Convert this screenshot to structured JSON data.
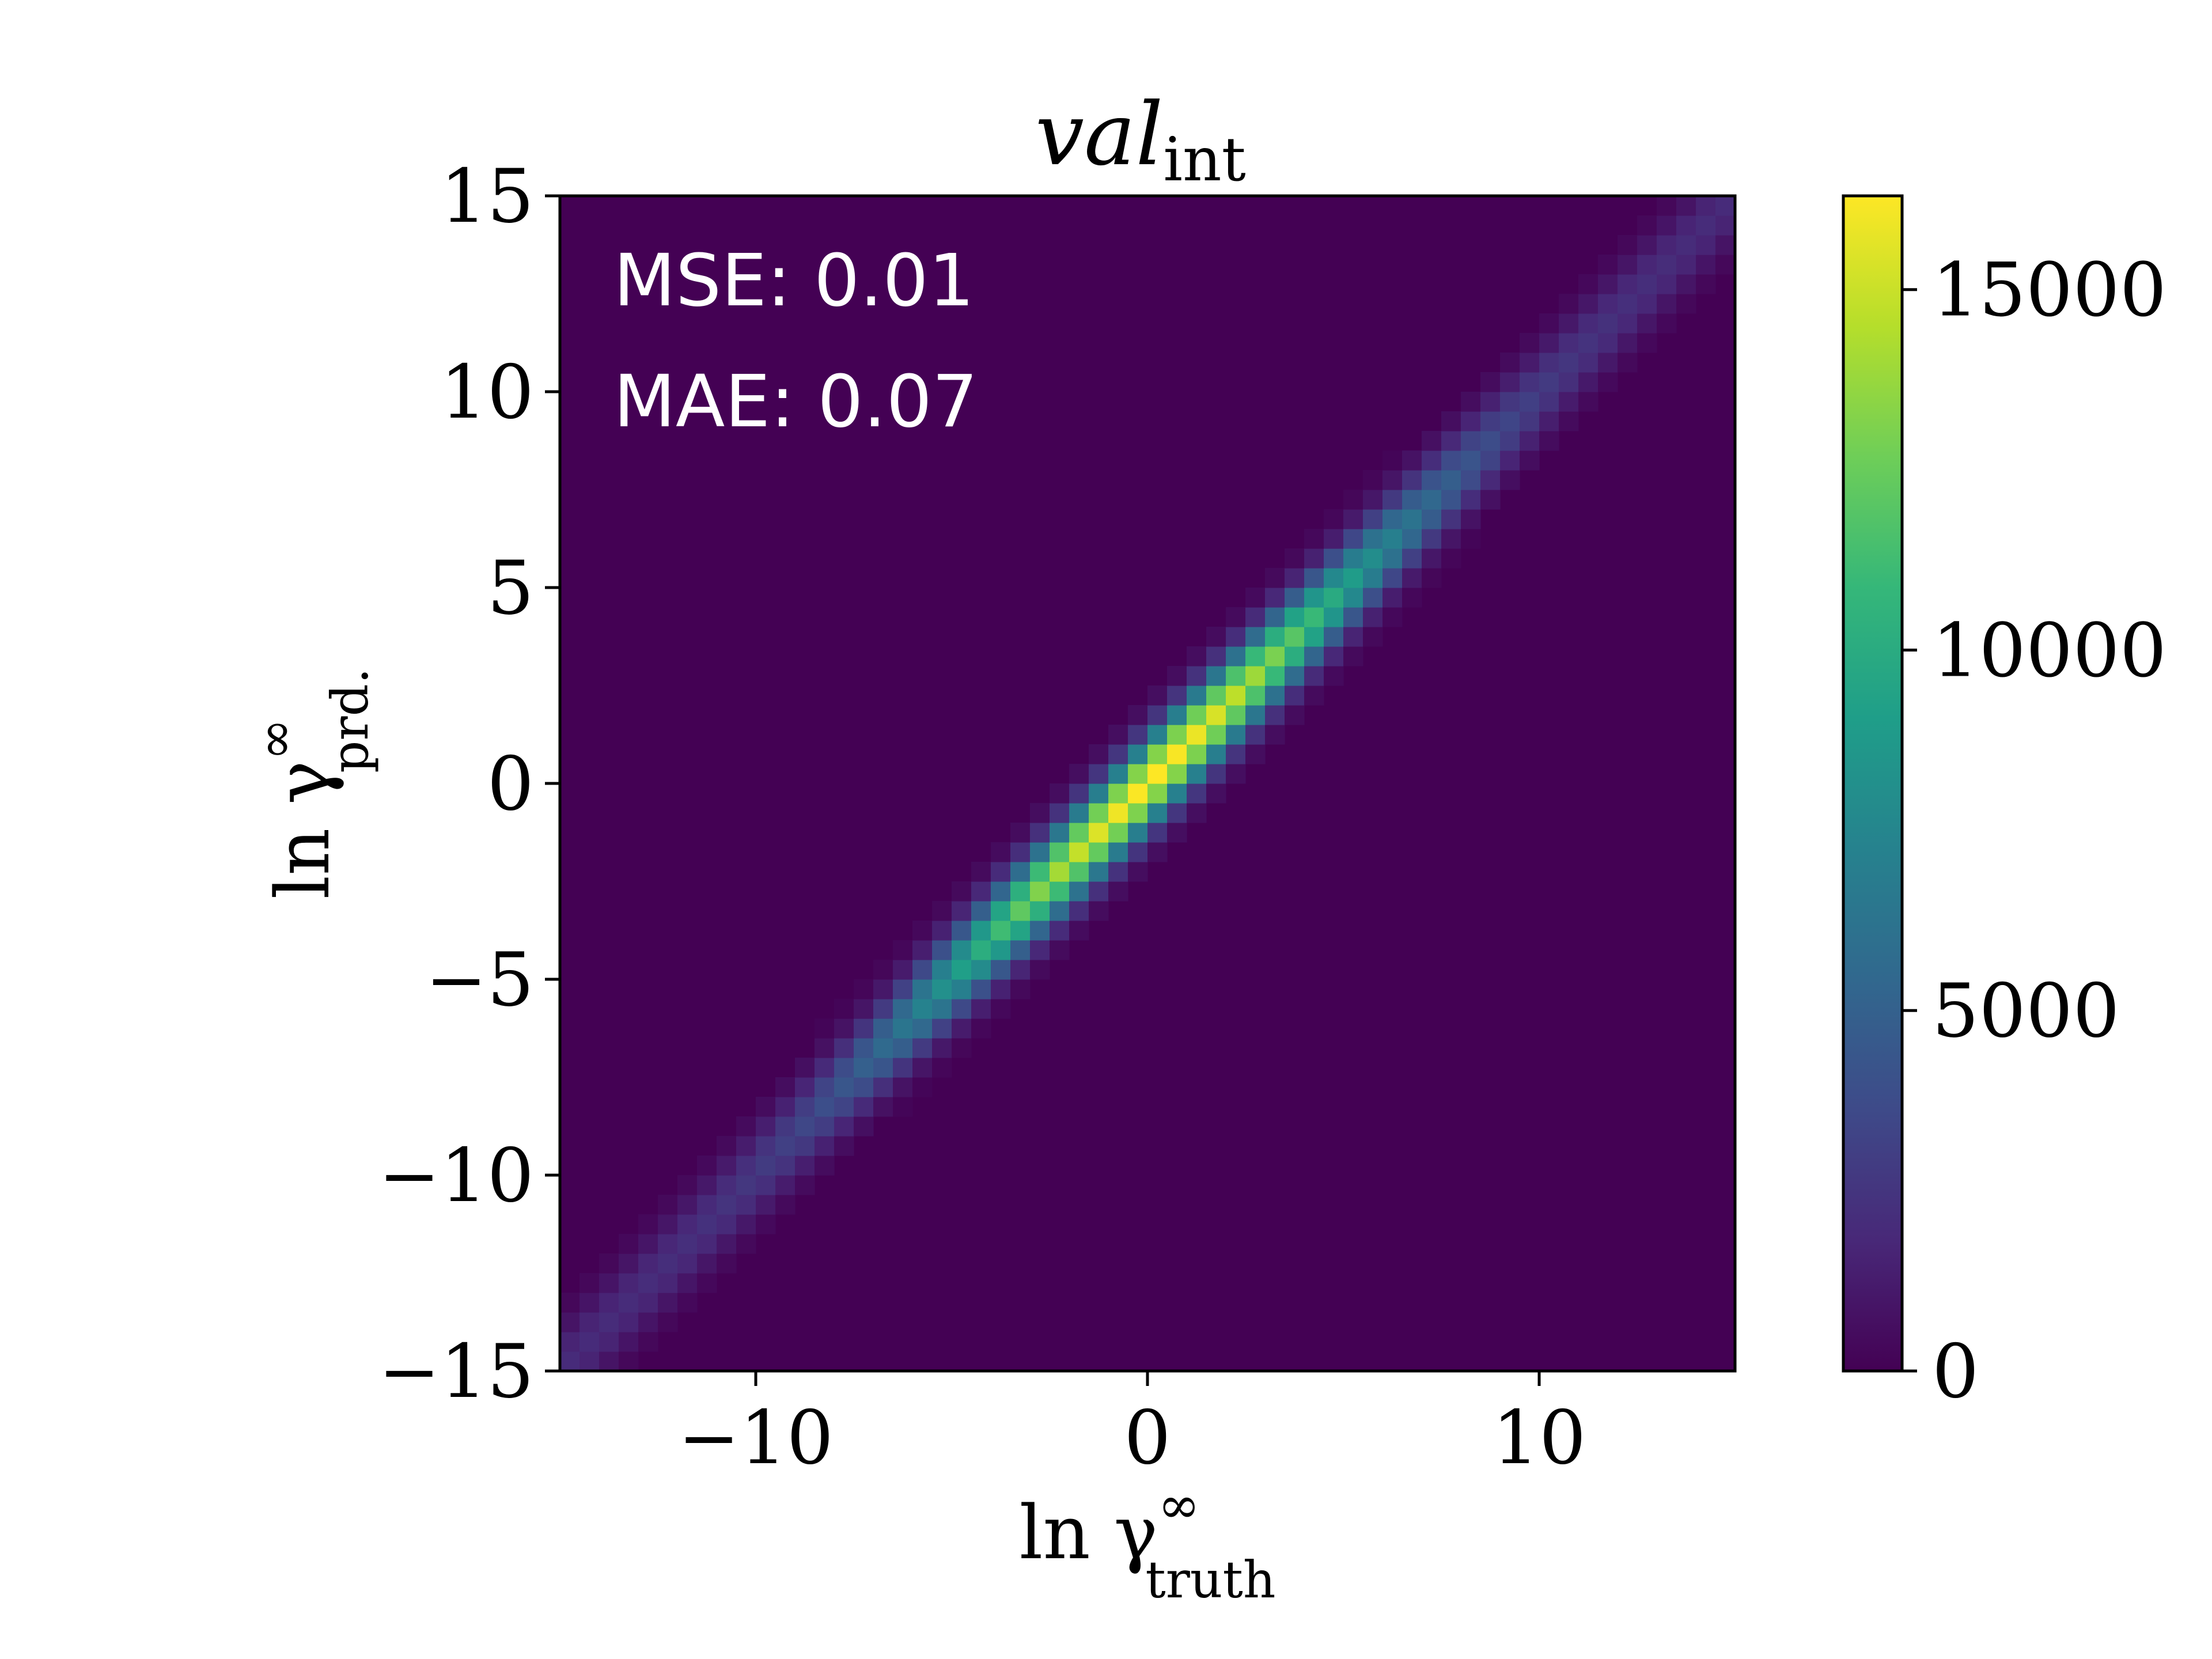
{
  "chart_data": {
    "type": "heatmap",
    "title": {
      "main": "val",
      "sub": "int"
    },
    "xlabel": {
      "main": "ln γ",
      "sup": "∞",
      "sub": "truth"
    },
    "ylabel": {
      "main": "ln γ",
      "sup": "∞",
      "sub": "prd."
    },
    "xlim": [
      -15,
      15
    ],
    "ylim": [
      -15,
      15
    ],
    "x_ticks": [
      {
        "value": -10,
        "label": "−10"
      },
      {
        "value": 0,
        "label": "0"
      },
      {
        "value": 10,
        "label": "10"
      }
    ],
    "y_ticks": [
      {
        "value": -15,
        "label": "−15"
      },
      {
        "value": -10,
        "label": "−10"
      },
      {
        "value": -5,
        "label": "−5"
      },
      {
        "value": 0,
        "label": "0"
      },
      {
        "value": 5,
        "label": "5"
      },
      {
        "value": 10,
        "label": "10"
      },
      {
        "value": 15,
        "label": "15"
      }
    ],
    "annotations": [
      "MSE: 0.01",
      "MAE: 0.07"
    ],
    "colorbar": {
      "range": [
        0,
        16300
      ],
      "ticks": [
        {
          "value": 0,
          "label": "0"
        },
        {
          "value": 5000,
          "label": "5000"
        },
        {
          "value": 10000,
          "label": "10000"
        },
        {
          "value": 15000,
          "label": "15000"
        }
      ],
      "colormap": "viridis"
    },
    "bins": {
      "nx": 60,
      "ny": 60,
      "peak_count": 16300,
      "peak_at": [
        0.2,
        0.2
      ],
      "diagonal_width": 0.55
    },
    "background_color": "#440154"
  }
}
